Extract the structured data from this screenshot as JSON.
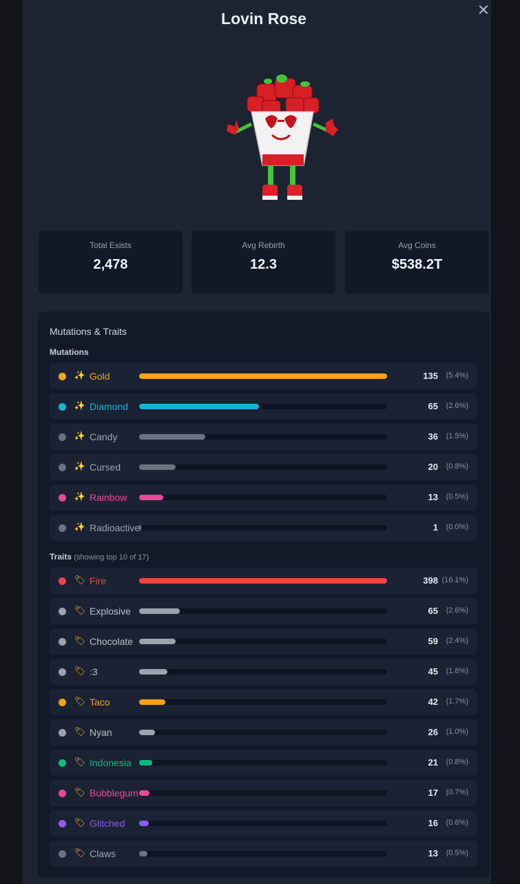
{
  "title": "Lovin Rose",
  "close_glyph": "✕",
  "stats": [
    {
      "label": "Total Exists",
      "value": "2,478"
    },
    {
      "label": "Avg Rebirth",
      "value": "12.3"
    },
    {
      "label": "Avg Coins",
      "value": "$538.2T"
    }
  ],
  "panel": {
    "title": "Mutations & Traits",
    "mutations_label": "Mutations",
    "traits_label": "Traits",
    "traits_sub": "(showing top 10 of 17)"
  },
  "mutations": [
    {
      "name": "Gold",
      "count": "135",
      "pct": "(5.4%)",
      "share": 1.0,
      "color": "#f4a416",
      "icon": "sparkles-icon"
    },
    {
      "name": "Diamond",
      "count": "65",
      "pct": "(2.6%)",
      "share": 0.482,
      "color": "#14b4d6",
      "icon": "sparkles-icon"
    },
    {
      "name": "Candy",
      "count": "36",
      "pct": "(1.5%)",
      "share": 0.267,
      "color": "#6b7280",
      "icon": "sparkles-icon"
    },
    {
      "name": "Cursed",
      "count": "20",
      "pct": "(0.8%)",
      "share": 0.148,
      "color": "#6b7280",
      "icon": "sparkles-icon"
    },
    {
      "name": "Rainbow",
      "count": "13",
      "pct": "(0.5%)",
      "share": 0.096,
      "color": "#ec4899",
      "icon": "sparkles-icon"
    },
    {
      "name": "Radioactive",
      "count": "1",
      "pct": "(0.0%)",
      "share": 0.007,
      "color": "#6b7280",
      "icon": "sparkles-icon"
    }
  ],
  "traits": [
    {
      "name": "Fire",
      "count": "398",
      "pct": "(16.1%)",
      "share": 1.0,
      "color": "#ef4444",
      "icon": "tag-icon"
    },
    {
      "name": "Explosive",
      "count": "65",
      "pct": "(2.6%)",
      "share": 0.163,
      "color": "#9ca3af",
      "icon": "tag-icon"
    },
    {
      "name": "Chocolate",
      "count": "59",
      "pct": "(2.4%)",
      "share": 0.148,
      "color": "#9ca3af",
      "icon": "tag-icon"
    },
    {
      "name": ":3",
      "count": "45",
      "pct": "(1.8%)",
      "share": 0.113,
      "color": "#9ca3af",
      "icon": "tag-icon"
    },
    {
      "name": "Taco",
      "count": "42",
      "pct": "(1.7%)",
      "share": 0.106,
      "color": "#f4a416",
      "icon": "tag-icon"
    },
    {
      "name": "Nyan",
      "count": "26",
      "pct": "(1.0%)",
      "share": 0.065,
      "color": "#9ca3af",
      "icon": "tag-icon"
    },
    {
      "name": "Indonesia",
      "count": "21",
      "pct": "(0.8%)",
      "share": 0.053,
      "color": "#10b981",
      "icon": "tag-icon"
    },
    {
      "name": "Bubblegum",
      "count": "17",
      "pct": "(0.7%)",
      "share": 0.043,
      "color": "#ec4899",
      "icon": "tag-icon"
    },
    {
      "name": "Glitched",
      "count": "16",
      "pct": "(0.6%)",
      "share": 0.04,
      "color": "#8b5cf6",
      "icon": "tag-icon"
    },
    {
      "name": "Claws",
      "count": "13",
      "pct": "(0.5%)",
      "share": 0.033,
      "color": "#6b7280",
      "icon": "tag-icon"
    }
  ]
}
